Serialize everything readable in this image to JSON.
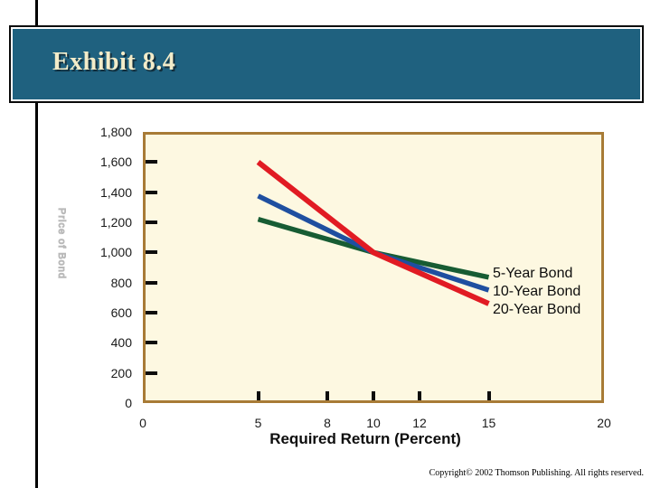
{
  "slide": {
    "title": "Exhibit 8.4",
    "copyright": "Copyright© 2002 Thomson Publishing. All rights reserved."
  },
  "colors": {
    "header_background": "#1F617F",
    "header_title": "#F3ECC9",
    "plot_background": "#FDF8E1",
    "plot_border": "#A87B36",
    "accent_line": "#000000",
    "tick_color": "#0d0d0d"
  },
  "chart_data": {
    "type": "line",
    "title": "",
    "xlabel": "Required Return (Percent)",
    "ylabel": "Price of Bond",
    "xlim": [
      0,
      20
    ],
    "ylim": [
      0,
      1800
    ],
    "grid": false,
    "legend_position": "inside-right",
    "x": [
      5,
      10,
      15
    ],
    "series": [
      {
        "name": "5-Year Bond",
        "color": "#175C33",
        "values": [
          1220,
          1000,
          835
        ]
      },
      {
        "name": "10-Year Bond",
        "color": "#1F4FA0",
        "values": [
          1375,
          1000,
          750
        ]
      },
      {
        "name": "20-Year Bond",
        "color": "#E11B23",
        "values": [
          1600,
          1000,
          660
        ]
      }
    ],
    "x_ticks": [
      {
        "label": "0",
        "value": 0,
        "mark": false
      },
      {
        "label": "5",
        "value": 5,
        "mark": true
      },
      {
        "label": "8",
        "value": 8,
        "mark": true
      },
      {
        "label": "10",
        "value": 10,
        "mark": true
      },
      {
        "label": "12",
        "value": 12,
        "mark": true
      },
      {
        "label": "15",
        "value": 15,
        "mark": true
      },
      {
        "label": "20",
        "value": 20,
        "mark": false
      }
    ],
    "y_ticks": [
      {
        "label": "1,800",
        "value": 1800,
        "mark": false
      },
      {
        "label": "1,600",
        "value": 1600,
        "mark": true
      },
      {
        "label": "1,400",
        "value": 1400,
        "mark": true
      },
      {
        "label": "1,200",
        "value": 1200,
        "mark": true
      },
      {
        "label": "1,000",
        "value": 1000,
        "mark": true
      },
      {
        "label": "800",
        "value": 800,
        "mark": true
      },
      {
        "label": "600",
        "value": 600,
        "mark": true
      },
      {
        "label": "400",
        "value": 400,
        "mark": true
      },
      {
        "label": "200",
        "value": 200,
        "mark": true
      },
      {
        "label": "0",
        "value": 0,
        "mark": false
      }
    ]
  }
}
